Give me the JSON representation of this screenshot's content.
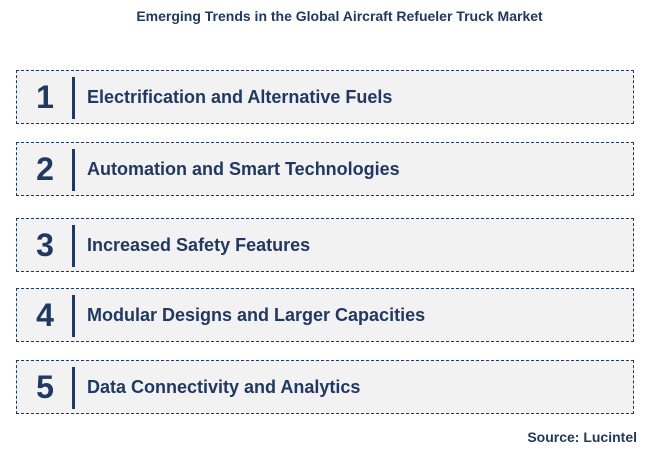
{
  "title": "Emerging Trends in the Global Aircraft Refueler Truck Market",
  "trends": [
    {
      "number": "1",
      "label": "Electrification and Alternative Fuels"
    },
    {
      "number": "2",
      "label": "Automation and Smart Technologies"
    },
    {
      "number": "3",
      "label": "Increased Safety Features"
    },
    {
      "number": "4",
      "label": "Modular Designs and Larger Capacities"
    },
    {
      "number": "5",
      "label": "Data Connectivity and Analytics"
    }
  ],
  "source": "Source: Lucintel",
  "colors": {
    "primary": "#1f3864",
    "box_background": "#f2f2f2"
  }
}
